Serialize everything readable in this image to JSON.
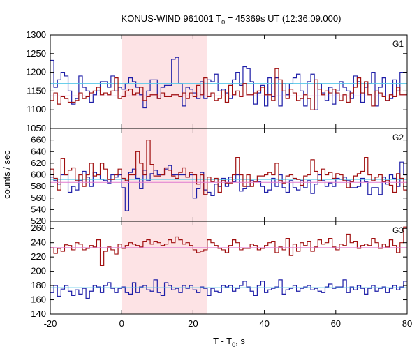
{
  "chart_data": {
    "type": "line",
    "title_main": "KONUS-WIND 961001 T",
    "title_sub": "0",
    "title_rest": " = 45369s UT (12:36:09.000)",
    "xlabel_main": "T - T",
    "xlabel_sub": "0",
    "xlabel_rest": ", s",
    "ylabel": "counts / sec",
    "xlim": [
      -20,
      80
    ],
    "xticks": [
      -20,
      0,
      20,
      40,
      60,
      80
    ],
    "highlight_interval": [
      0,
      24
    ],
    "bin_width": 1,
    "x_start": -20,
    "panels": [
      {
        "label": "G1",
        "ylim": [
          1050,
          1300
        ],
        "yticks": [
          1050,
          1100,
          1150,
          1200,
          1250,
          1300
        ],
        "series": [
          {
            "color": "#1f1fa8",
            "values": [
              1232,
              1160,
              1180,
              1200,
              1190,
              1150,
              1115,
              1130,
              1190,
              1160,
              1150,
              1120,
              1140,
              1150,
              1175,
              1175,
              1160,
              1190,
              1150,
              1160,
              1155,
              1170,
              1185,
              1175,
              1160,
              1140,
              1105,
              1150,
              1180,
              1180,
              1130,
              1160,
              1165,
              1165,
              1235,
              1240,
              1170,
              1110,
              1160,
              1155,
              1145,
              1130,
              1175,
              1130,
              1180,
              1175,
              1195,
              1150,
              1155,
              1145,
              1130,
              1180,
              1200,
              1165,
              1215,
              1210,
              1175,
              1115,
              1145,
              1165,
              1110,
              1185,
              1135,
              1185,
              1110,
              1170,
              1140,
              1170,
              1185,
              1195,
              1150,
              1110,
              1175,
              1195,
              1100,
              1170,
              1145,
              1125,
              1160,
              1115,
              1150,
              1175,
              1160,
              1150,
              1130,
              1190,
              1175,
              1120,
              1160,
              1170,
              1200,
              1110,
              1160,
              1185,
              1125,
              1130,
              1180,
              1150,
              1200,
              1200
            ],
            "mean": 1170
          },
          {
            "color": "#a01010",
            "values": [
              1125,
              1145,
              1115,
              1135,
              1130,
              1120,
              1120,
              1125,
              1145,
              1130,
              1135,
              1145,
              1150,
              1160,
              1140,
              1145,
              1140,
              1150,
              1185,
              1130,
              1135,
              1150,
              1155,
              1140,
              1145,
              1160,
              1125,
              1135,
              1140,
              1140,
              1130,
              1145,
              1135,
              1135,
              1140,
              1140,
              1135,
              1145,
              1130,
              1145,
              1135,
              1165,
              1140,
              1185,
              1135,
              1145,
              1125,
              1130,
              1150,
              1120,
              1165,
              1140,
              1150,
              1135,
              1170,
              1140,
              1140,
              1145,
              1150,
              1160,
              1140,
              1140,
              1125,
              1210,
              1180,
              1150,
              1130,
              1155,
              1145,
              1125,
              1130,
              1140,
              1130,
              1100,
              1180,
              1155,
              1140,
              1150,
              1145,
              1155,
              1145,
              1125,
              1140,
              1120,
              1145,
              1160,
              1185,
              1145,
              1175,
              1140,
              1110,
              1150,
              1145,
              1135,
              1125,
              1140,
              1135,
              1160,
              1140,
              1140
            ],
            "mean": 1137
          }
        ]
      },
      {
        "label": "G2",
        "ylim": [
          520,
          680
        ],
        "yticks": [
          520,
          540,
          560,
          580,
          600,
          620,
          640,
          660
        ],
        "series": [
          {
            "color": "#1f1fa8",
            "values": [
              596,
              590,
              584,
              600,
              600,
              570,
              580,
              574,
              590,
              606,
              596,
              580,
              604,
              600,
              592,
              590,
              586,
              600,
              596,
              600,
              578,
              538,
              604,
              610,
              594,
              576,
              608,
              590,
              602,
              608,
              600,
              600,
              610,
              616,
              600,
              600,
              600,
              600,
              596,
              600,
              560,
              576,
              604,
              574,
              570,
              564,
              584,
              580,
              594,
              580,
              596,
              588,
              600,
              572,
              576,
              580,
              590,
              588,
              588,
              580,
              570,
              574,
              594,
              580,
              600,
              578,
              570,
              590,
              578,
              574,
              590,
              578,
              590,
              568,
              584,
              600,
              590,
              580,
              586,
              580,
              594,
              592,
              596,
              590,
              578,
              578,
              580,
              594,
              588,
              566,
              578,
              578,
              566,
              596,
              584,
              600,
              594,
              580,
              622,
              600
            ],
            "mean": 592
          },
          {
            "color": "#a01010",
            "values": [
              610,
              594,
              574,
              628,
              600,
              608,
              612,
              590,
              600,
              580,
              600,
              620,
              598,
              600,
              620,
              610,
              592,
              592,
              600,
              610,
              594,
              590,
              600,
              600,
              640,
              620,
              600,
              660,
              618,
              598,
              598,
              600,
              612,
              608,
              598,
              594,
              604,
              612,
              596,
              604,
              600,
              584,
              600,
              566,
              596,
              588,
              594,
              570,
              590,
              586,
              586,
              600,
              630,
              600,
              580,
              600,
              580,
              588,
              598,
              598,
              600,
              604,
              600,
              620,
              590,
              586,
              598,
              600,
              594,
              592,
              582,
              598,
              600,
              626,
              606,
              590,
              610,
              600,
              604,
              594,
              602,
              600,
              590,
              578,
              588,
              598,
              602,
              606,
              630,
              600,
              590,
              596,
              600,
              588,
              590,
              582,
              570,
              602,
              594,
              574
            ],
            "mean": 587
          }
        ]
      },
      {
        "label": "G3",
        "ylim": [
          140,
          270
        ],
        "yticks": [
          140,
          160,
          180,
          200,
          220,
          240,
          260
        ],
        "series": [
          {
            "color": "#1f1fa8",
            "values": [
              170,
              180,
              165,
              175,
              180,
              172,
              166,
              174,
              168,
              176,
              162,
              172,
              180,
              178,
              170,
              180,
              184,
              176,
              170,
              176,
              178,
              170,
              168,
              184,
              170,
              178,
              180,
              174,
              172,
              188,
              170,
              166,
              184,
              180,
              174,
              176,
              170,
              180,
              176,
              180,
              174,
              170,
              178,
              176,
              166,
              176,
              172,
              170,
              180,
              178,
              180,
              172,
              176,
              180,
              186,
              178,
              172,
              166,
              180,
              186,
              170,
              174,
              176,
              178,
              188,
              168,
              174,
              176,
              180,
              172,
              176,
              178,
              180,
              174,
              176,
              172,
              170,
              178,
              182,
              176,
              178,
              178,
              188,
              170,
              178,
              174,
              180,
              176,
              168,
              176,
              180,
              172,
              176,
              178,
              170,
              176,
              180,
              174,
              178,
              186
            ],
            "mean": 177
          },
          {
            "color": "#a01010",
            "values": [
              233,
              225,
              232,
              228,
              237,
              236,
              230,
              240,
              238,
              230,
              232,
              236,
              234,
              244,
              208,
              228,
              234,
              230,
              224,
              238,
              232,
              236,
              240,
              238,
              236,
              234,
              242,
              244,
              238,
              242,
              240,
              236,
              238,
              244,
              240,
              248,
              244,
              238,
              240,
              236,
              230,
              226,
              228,
              230,
              244,
              240,
              236,
              232,
              230,
              226,
              236,
              244,
              240,
              230,
              232,
              232,
              238,
              236,
              230,
              232,
              236,
              240,
              242,
              226,
              234,
              230,
              246,
              222,
              238,
              228,
              240,
              236,
              242,
              228,
              234,
              244,
              238,
              240,
              246,
              234,
              230,
              238,
              236,
              252,
              240,
              242,
              232,
              236,
              238,
              236,
              246,
              240,
              232,
              238,
              234,
              244,
              236,
              226,
              240,
              262
            ],
            "mean": 233
          }
        ]
      }
    ]
  }
}
